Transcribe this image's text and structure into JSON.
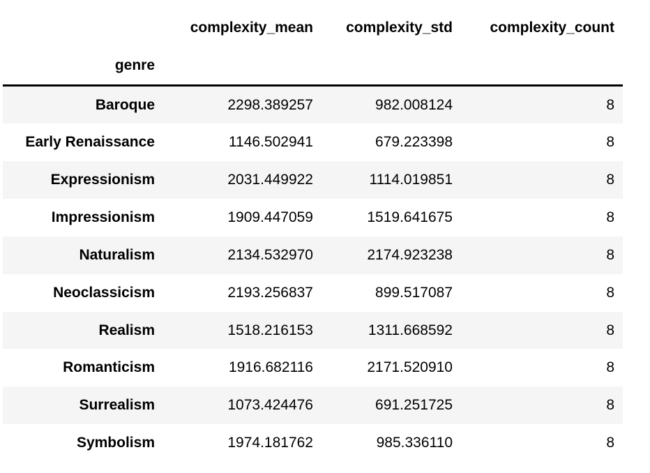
{
  "table": {
    "index_name": "genre",
    "columns": [
      "complexity_mean",
      "complexity_std",
      "complexity_count"
    ],
    "rows": [
      {
        "genre": "Baroque",
        "complexity_mean": "2298.389257",
        "complexity_std": "982.008124",
        "complexity_count": "8"
      },
      {
        "genre": "Early Renaissance",
        "complexity_mean": "1146.502941",
        "complexity_std": "679.223398",
        "complexity_count": "8"
      },
      {
        "genre": "Expressionism",
        "complexity_mean": "2031.449922",
        "complexity_std": "1114.019851",
        "complexity_count": "8"
      },
      {
        "genre": "Impressionism",
        "complexity_mean": "1909.447059",
        "complexity_std": "1519.641675",
        "complexity_count": "8"
      },
      {
        "genre": "Naturalism",
        "complexity_mean": "2134.532970",
        "complexity_std": "2174.923238",
        "complexity_count": "8"
      },
      {
        "genre": "Neoclassicism",
        "complexity_mean": "2193.256837",
        "complexity_std": "899.517087",
        "complexity_count": "8"
      },
      {
        "genre": "Realism",
        "complexity_mean": "1518.216153",
        "complexity_std": "1311.668592",
        "complexity_count": "8"
      },
      {
        "genre": "Romanticism",
        "complexity_mean": "1916.682116",
        "complexity_std": "2171.520910",
        "complexity_count": "8"
      },
      {
        "genre": "Surrealism",
        "complexity_mean": "1073.424476",
        "complexity_std": "691.251725",
        "complexity_count": "8"
      },
      {
        "genre": "Symbolism",
        "complexity_mean": "1974.181762",
        "complexity_std": "985.336110",
        "complexity_count": "8"
      }
    ]
  },
  "colors": {
    "row_stripe": "#f5f5f5",
    "header_border": "#000000",
    "text": "#000000",
    "background": "#ffffff"
  }
}
